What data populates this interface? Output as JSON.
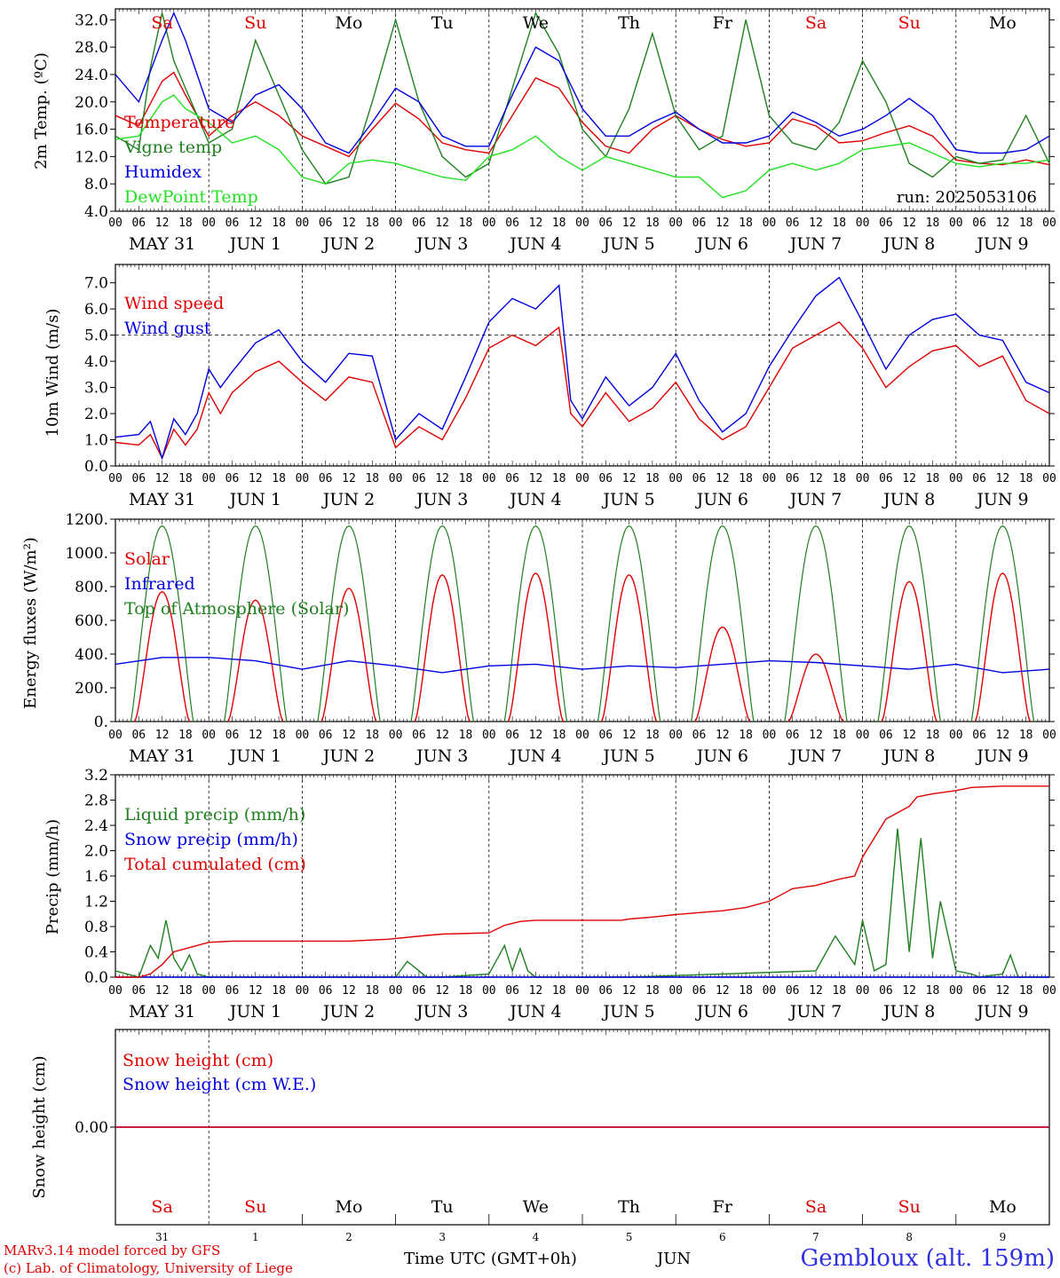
{
  "run_label": "run: 2025053106",
  "day_names": [
    "Sa",
    "Su",
    "Mo",
    "Tu",
    "We",
    "Th",
    "Fr",
    "Sa",
    "Su",
    "Mo"
  ],
  "day_name_colors": [
    "#e00000",
    "#e00000",
    "#000000",
    "#000000",
    "#000000",
    "#000000",
    "#000000",
    "#e00000",
    "#e00000",
    "#000000"
  ],
  "date_labels": [
    "MAY 31",
    "JUN  1",
    "JUN  2",
    "JUN  3",
    "JUN  4",
    "JUN  5",
    "JUN  6",
    "JUN  7",
    "JUN  8",
    "JUN  9"
  ],
  "hour_ticks": [
    "00",
    "06",
    "12",
    "18"
  ],
  "bottom_day_numbers": [
    "31",
    "1",
    "2",
    "3",
    "4",
    "5",
    "6",
    "7",
    "8",
    "9"
  ],
  "bottom_month": "JUN",
  "x_axis_title": "Time UTC (GMT+0h)",
  "footer_left_1": "MARv3.14 model forced by GFS",
  "footer_left_2": "(c) Lab. of Climatology, University of Liege",
  "station_label": "Gembloux (alt. 159m)",
  "chart_data": [
    {
      "type": "line",
      "ylabel": "2m Temp. (ºC)",
      "ylim": [
        4,
        33.6
      ],
      "yticks": [
        "32.0",
        "28.0",
        "24.0",
        "20.0",
        "16.0",
        "12.0",
        "8.0",
        "4.0"
      ],
      "ytick_values": [
        32,
        28,
        24,
        20,
        16,
        12,
        8,
        4
      ],
      "x_hours_start": 0,
      "series": [
        {
          "name": "Temperature",
          "color": "#e00000",
          "x": [
            0,
            6,
            12,
            15,
            18,
            24,
            30,
            36,
            42,
            48,
            54,
            60,
            66,
            72,
            78,
            84,
            90,
            96,
            102,
            108,
            114,
            120,
            126,
            132,
            138,
            144,
            150,
            156,
            162,
            168,
            174,
            180,
            186,
            192,
            198,
            204,
            210,
            216,
            222,
            228,
            234,
            240
          ],
          "values": [
            18,
            16.5,
            23,
            24.3,
            21,
            15,
            18,
            20,
            18,
            15,
            13.5,
            12,
            16,
            19.8,
            17.5,
            14,
            13,
            12.5,
            18,
            23.5,
            22,
            17,
            13.5,
            12.5,
            16,
            18,
            16,
            14.5,
            13.5,
            14,
            17.5,
            16.5,
            14,
            14.3,
            15.5,
            16.5,
            15,
            11.5,
            11,
            10.8,
            11.5,
            10.8
          ]
        },
        {
          "name": "Vigne temp",
          "color": "#208020",
          "x": [
            0,
            6,
            9,
            12,
            15,
            18,
            24,
            30,
            36,
            42,
            48,
            54,
            60,
            66,
            72,
            78,
            84,
            90,
            96,
            102,
            108,
            114,
            120,
            126,
            132,
            138,
            144,
            150,
            156,
            162,
            168,
            174,
            180,
            186,
            192,
            198,
            204,
            210,
            216,
            222,
            228,
            234,
            240
          ],
          "values": [
            15,
            13,
            25,
            33,
            26,
            22,
            14,
            16,
            29,
            21,
            13,
            8,
            9,
            20,
            32,
            20,
            12,
            9,
            11,
            22,
            33,
            27,
            16,
            12,
            19,
            30,
            18,
            13,
            15,
            32,
            18,
            14,
            13,
            17,
            26,
            20,
            11,
            9,
            12,
            11,
            11.5,
            18,
            11
          ]
        },
        {
          "name": "Humidex",
          "color": "#0000e0",
          "x": [
            0,
            6,
            12,
            15,
            18,
            24,
            30,
            36,
            42,
            48,
            54,
            60,
            66,
            72,
            78,
            84,
            90,
            96,
            102,
            108,
            114,
            120,
            126,
            132,
            138,
            144,
            150,
            156,
            162,
            168,
            174,
            180,
            186,
            192,
            198,
            204,
            210,
            216,
            222,
            228,
            234,
            240
          ],
          "values": [
            24,
            20,
            29,
            33,
            29,
            19,
            17,
            21,
            22.5,
            19,
            14,
            12.5,
            17,
            22,
            20,
            15,
            13.5,
            13.5,
            21,
            28,
            26,
            19,
            15,
            15,
            17,
            18.5,
            16,
            14,
            14,
            15,
            18.5,
            17,
            15,
            16,
            18,
            20.5,
            18,
            13,
            12.5,
            12.5,
            13,
            15
          ]
        },
        {
          "name": "DewPoint Temp",
          "color": "#20e020",
          "x": [
            0,
            6,
            12,
            15,
            18,
            24,
            30,
            36,
            42,
            48,
            54,
            60,
            66,
            72,
            78,
            84,
            90,
            96,
            102,
            108,
            114,
            120,
            126,
            132,
            138,
            144,
            150,
            156,
            162,
            168,
            174,
            180,
            186,
            192,
            198,
            204,
            210,
            216,
            222,
            228,
            234,
            240
          ],
          "values": [
            14.5,
            15,
            20,
            21,
            19,
            17,
            14,
            15,
            13,
            9,
            8,
            11,
            11.5,
            11,
            10,
            9,
            8.5,
            12,
            13,
            15,
            12,
            10,
            12,
            11,
            10,
            9,
            9,
            6,
            7,
            10,
            11,
            10,
            11,
            13,
            13.5,
            14,
            12.5,
            11,
            10.5,
            11,
            11,
            11.5
          ]
        }
      ]
    },
    {
      "type": "line",
      "ylabel": "10m Wind (m/s)",
      "ylim": [
        0,
        7.7
      ],
      "yticks": [
        "7.0",
        "6.0",
        "5.0",
        "4.0",
        "3.0",
        "2.0",
        "1.0",
        "0.0"
      ],
      "ytick_values": [
        7,
        6,
        5,
        4,
        3,
        2,
        1,
        0
      ],
      "reference_line": 5.0,
      "series": [
        {
          "name": "Wind speed",
          "color": "#e00000",
          "x": [
            0,
            6,
            9,
            12,
            15,
            18,
            21,
            24,
            27,
            30,
            36,
            42,
            48,
            54,
            60,
            66,
            72,
            78,
            84,
            90,
            96,
            102,
            108,
            114,
            117,
            120,
            126,
            132,
            138,
            144,
            150,
            156,
            162,
            168,
            174,
            180,
            186,
            192,
            198,
            204,
            210,
            216,
            222,
            228,
            234,
            240
          ],
          "values": [
            0.9,
            0.8,
            1.2,
            0.3,
            1.4,
            0.8,
            1.4,
            2.8,
            2.0,
            2.8,
            3.6,
            4.0,
            3.2,
            2.5,
            3.4,
            3.2,
            0.7,
            1.5,
            1.0,
            2.6,
            4.5,
            5.0,
            4.6,
            5.3,
            2.0,
            1.5,
            2.8,
            1.7,
            2.2,
            3.2,
            1.8,
            1.0,
            1.5,
            3.0,
            4.5,
            5.0,
            5.5,
            4.5,
            3.0,
            3.8,
            4.4,
            4.6,
            3.8,
            4.2,
            2.5,
            2.0
          ]
        },
        {
          "name": "Wind gust",
          "color": "#0000e0",
          "x": [
            0,
            6,
            9,
            12,
            15,
            18,
            21,
            24,
            27,
            30,
            36,
            42,
            48,
            54,
            60,
            66,
            72,
            78,
            84,
            90,
            96,
            102,
            108,
            114,
            117,
            120,
            126,
            132,
            138,
            144,
            150,
            156,
            162,
            168,
            174,
            180,
            186,
            192,
            198,
            204,
            210,
            216,
            222,
            228,
            234,
            240
          ],
          "values": [
            1.1,
            1.2,
            1.7,
            0.3,
            1.8,
            1.2,
            2.0,
            3.7,
            3.0,
            3.6,
            4.7,
            5.2,
            4.0,
            3.2,
            4.3,
            4.2,
            1.0,
            2.0,
            1.4,
            3.4,
            5.5,
            6.4,
            6.0,
            6.9,
            2.5,
            1.8,
            3.4,
            2.3,
            3.0,
            4.3,
            2.5,
            1.3,
            2.0,
            3.8,
            5.2,
            6.5,
            7.2,
            5.5,
            3.7,
            5.0,
            5.6,
            5.8,
            5.0,
            4.8,
            3.2,
            2.8
          ]
        }
      ]
    },
    {
      "type": "line",
      "ylabel": "Energy fluxes (W/m²)",
      "ylim": [
        0,
        1200
      ],
      "yticks": [
        "1200.",
        "1000.",
        "800.",
        "600.",
        "400.",
        "200.",
        "0."
      ],
      "ytick_values": [
        1200,
        1000,
        800,
        600,
        400,
        200,
        0
      ],
      "series": [
        {
          "name": "Solar",
          "color": "#e00000",
          "peaks": [
            770,
            720,
            790,
            870,
            880,
            870,
            560,
            400,
            830,
            880
          ]
        },
        {
          "name": "Infrared",
          "color": "#0000e0",
          "x": [
            0,
            12,
            24,
            36,
            48,
            60,
            72,
            84,
            96,
            108,
            120,
            132,
            144,
            156,
            168,
            180,
            192,
            204,
            216,
            228,
            240
          ],
          "values": [
            340,
            380,
            380,
            360,
            310,
            360,
            330,
            290,
            330,
            340,
            310,
            330,
            320,
            340,
            360,
            350,
            330,
            310,
            340,
            290,
            310
          ]
        },
        {
          "name": "Top of Atmosphere (Solar)",
          "color": "#208020",
          "peak": 1160
        }
      ]
    },
    {
      "type": "line",
      "ylabel": "Precip (mm/h)",
      "ylim": [
        0,
        3.2
      ],
      "yticks": [
        "3.2",
        "2.8",
        "2.4",
        "2.0",
        "1.6",
        "1.2",
        "0.8",
        "0.4",
        "0.0"
      ],
      "ytick_values": [
        3.2,
        2.8,
        2.4,
        2.0,
        1.6,
        1.2,
        0.8,
        0.4,
        0.0
      ],
      "series": [
        {
          "name": "Liquid precip (mm/h)",
          "color": "#208020",
          "x": [
            0,
            6,
            9,
            11,
            13,
            15,
            17,
            19,
            21,
            24,
            26,
            28,
            30,
            60,
            70,
            72,
            75,
            78,
            80,
            84,
            96,
            100,
            102,
            104,
            106,
            108,
            110,
            114,
            120,
            124,
            126,
            128,
            130,
            132,
            180,
            185,
            190,
            192,
            195,
            198,
            201,
            204,
            207,
            210,
            212,
            216,
            220,
            222,
            228,
            230,
            232,
            234,
            236,
            240
          ],
          "values": [
            0.1,
            0,
            0.5,
            0.3,
            0.9,
            0.3,
            0.1,
            0.35,
            0.05,
            0,
            0,
            0,
            0,
            0,
            0,
            0,
            0.25,
            0.1,
            0,
            0,
            0.05,
            0.5,
            0.1,
            0.45,
            0.1,
            0,
            0,
            0,
            0,
            0,
            0,
            0,
            0,
            0,
            0.1,
            0.65,
            0.2,
            0.9,
            0.1,
            0.2,
            2.35,
            0.4,
            2.2,
            0.3,
            1.2,
            0.1,
            0.05,
            0,
            0.05,
            0.35,
            0,
            0,
            0,
            0
          ]
        },
        {
          "name": "Snow precip (mm/h)",
          "color": "#0000e0",
          "x": [
            0,
            240
          ],
          "values": [
            0,
            0
          ]
        },
        {
          "name": "Total cumulated (cm)",
          "color": "#e00000",
          "x": [
            0,
            6,
            9,
            12,
            15,
            18,
            24,
            30,
            60,
            70,
            80,
            84,
            96,
            100,
            102,
            104,
            108,
            120,
            130,
            132,
            138,
            144,
            150,
            156,
            162,
            168,
            174,
            180,
            186,
            190,
            192,
            195,
            198,
            201,
            204,
            206,
            210,
            216,
            220,
            228,
            240
          ],
          "values": [
            0,
            0,
            0.05,
            0.2,
            0.4,
            0.45,
            0.55,
            0.57,
            0.57,
            0.6,
            0.66,
            0.68,
            0.7,
            0.82,
            0.85,
            0.88,
            0.9,
            0.9,
            0.9,
            0.92,
            0.95,
            0.99,
            1.02,
            1.05,
            1.1,
            1.2,
            1.4,
            1.45,
            1.55,
            1.6,
            1.9,
            2.2,
            2.5,
            2.6,
            2.7,
            2.85,
            2.9,
            2.95,
            3.0,
            3.02,
            3.02
          ]
        }
      ]
    },
    {
      "type": "line",
      "ylabel": "Snow height (cm)",
      "yticks": [
        "0.00"
      ],
      "ytick_values": [
        0
      ],
      "series": [
        {
          "name": "Snow height (cm)",
          "color": "#e00000",
          "x": [
            0,
            240
          ],
          "values": [
            0,
            0
          ]
        },
        {
          "name": "Snow height (cm W.E.)",
          "color": "#0000e0",
          "x": [
            0,
            240
          ],
          "values": [
            0,
            0
          ]
        }
      ]
    }
  ]
}
